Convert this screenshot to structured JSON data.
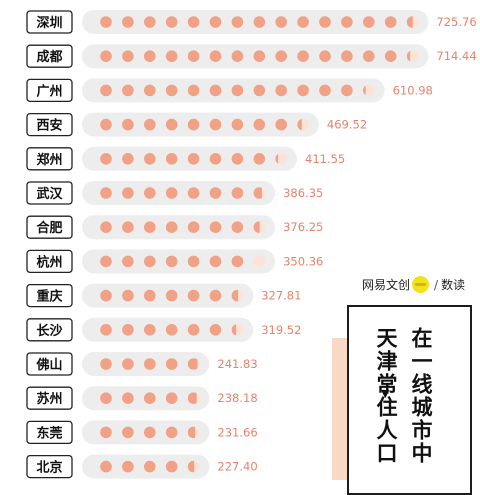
{
  "chart_data": {
    "type": "bar",
    "categories": [
      "深圳",
      "成都",
      "广州",
      "西安",
      "郑州",
      "武汉",
      "合肥",
      "杭州",
      "重庆",
      "长沙",
      "佛山",
      "苏州",
      "东莞",
      "北京"
    ],
    "values": [
      725.76,
      714.44,
      610.98,
      469.52,
      411.55,
      386.35,
      376.25,
      350.36,
      327.81,
      319.52,
      241.83,
      238.18,
      231.66,
      227.4
    ],
    "value_labels": [
      "725.76",
      "714.44",
      "610.98",
      "469.52",
      "411.55",
      "386.35",
      "376.25",
      "350.36",
      "327.81",
      "319.52",
      "241.83",
      "238.18",
      "231.66",
      "227.40"
    ],
    "unit_per_dot": 50,
    "title": "",
    "xlabel": "",
    "ylabel": "",
    "colors": {
      "dot": "#f0a186",
      "bar_bg": "#ededed",
      "value_text": "#e8826a",
      "label_border": "#222222"
    }
  },
  "brand": {
    "part1": "网易",
    "part2": "文创",
    "logo_text": "NetEase",
    "part3": "数读",
    "separator": "/"
  },
  "headline": {
    "line1": "在一线城市中",
    "line2": "天津常住人口"
  }
}
